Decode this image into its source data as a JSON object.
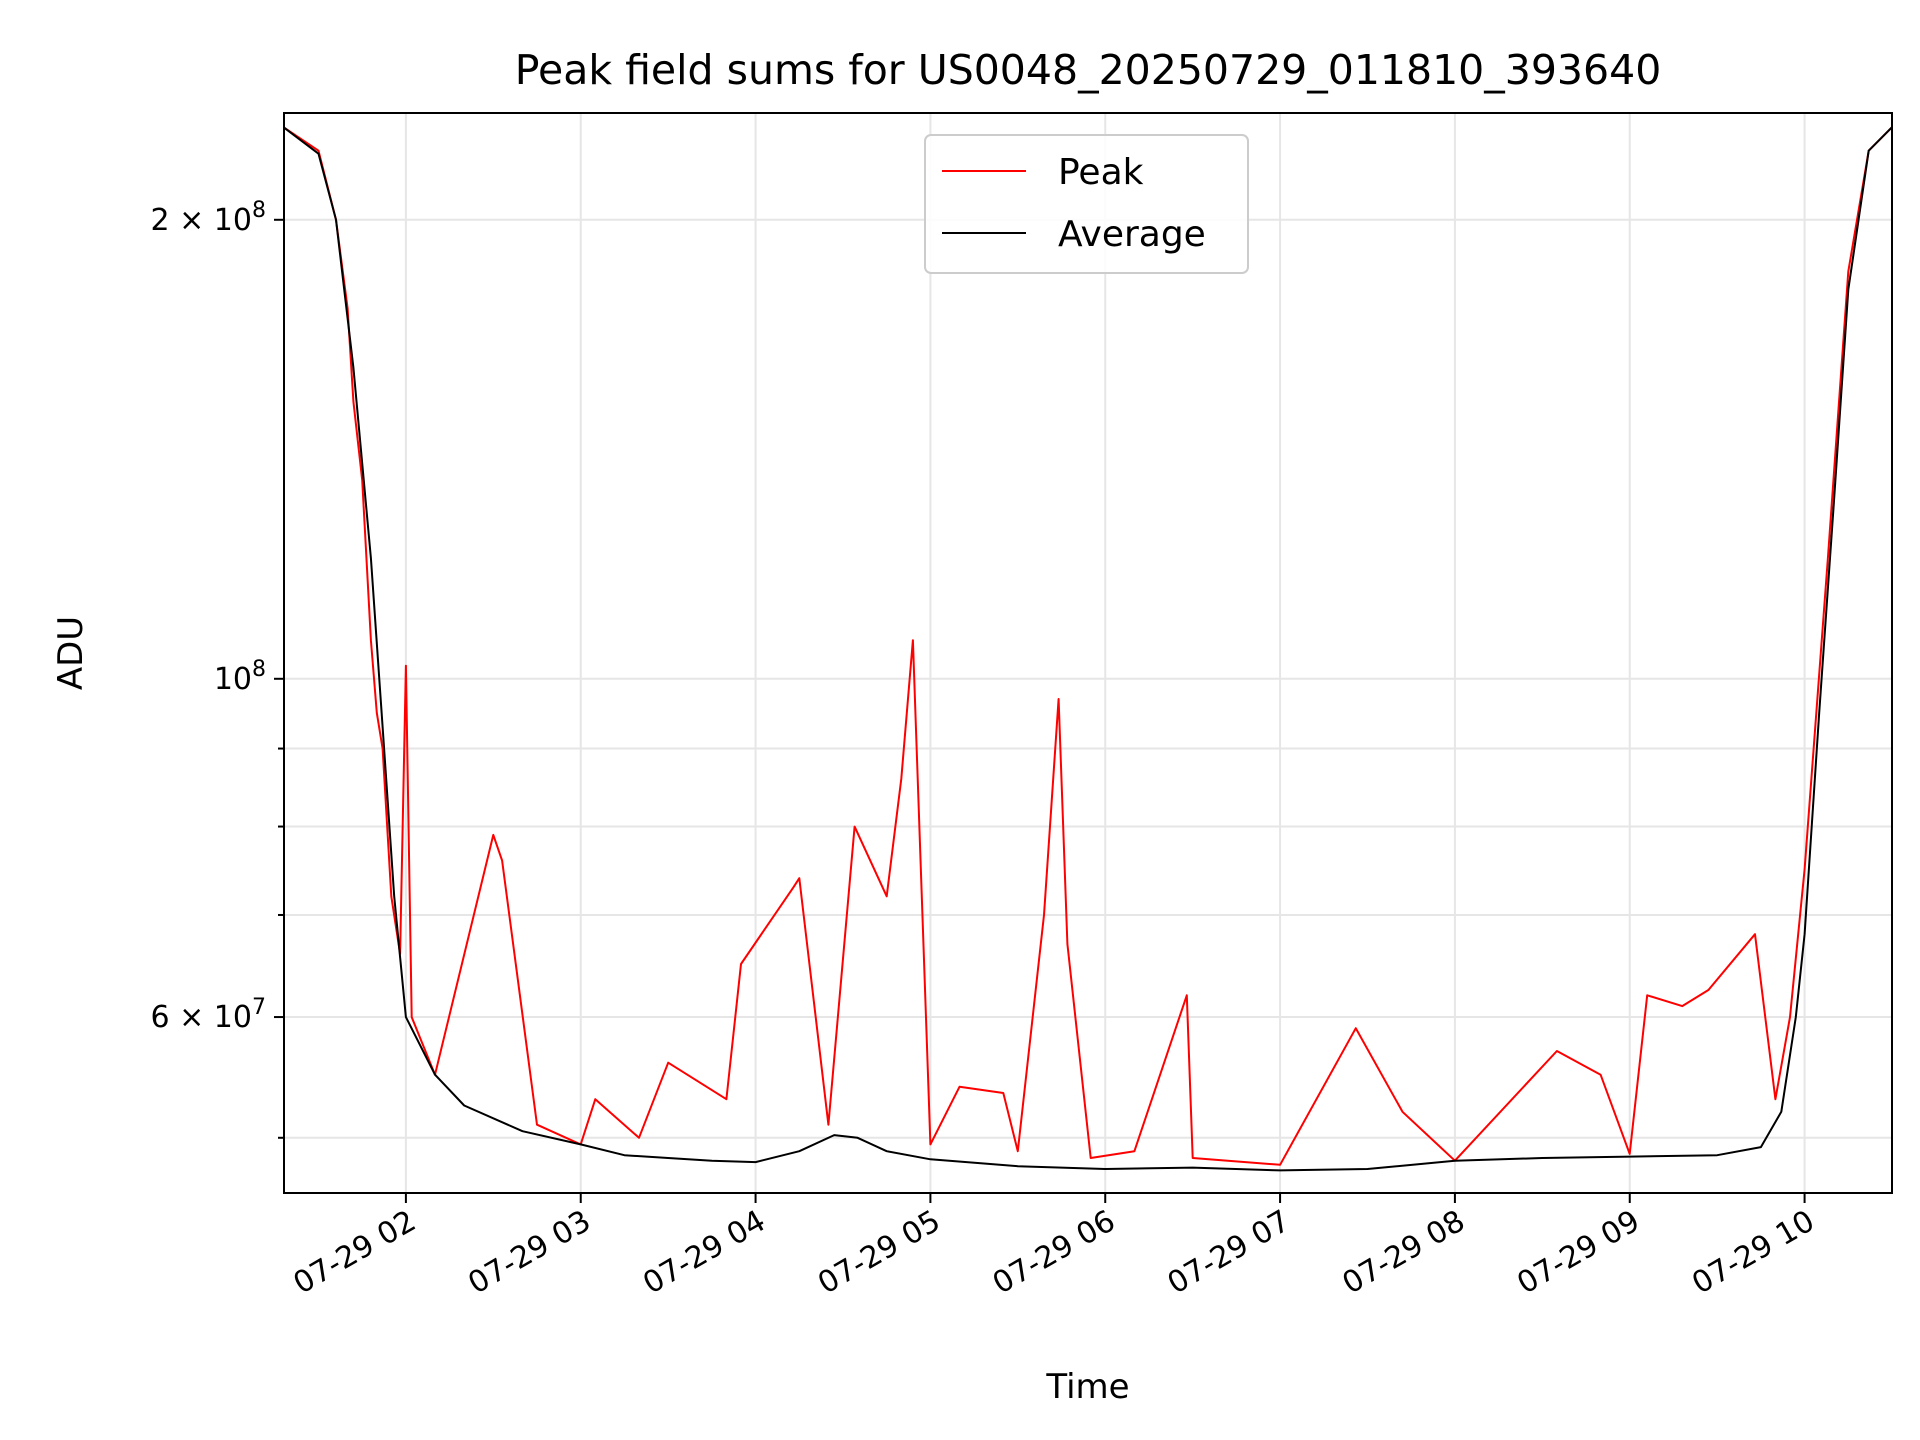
{
  "chart_data": {
    "type": "line",
    "title": "Peak field sums for US0048_20250729_011810_393640",
    "xlabel": "Time",
    "ylabel": "ADU",
    "y_scale": "log",
    "xlim": [
      "2025-07-29T01:18:10",
      "2025-07-29T10:30:00"
    ],
    "ylim": [
      46000000,
      235000000
    ],
    "x_ticks": [
      "07-29 02",
      "07-29 03",
      "07-29 04",
      "07-29 05",
      "07-29 06",
      "07-29 07",
      "07-29 08",
      "07-29 09",
      "07-29 10"
    ],
    "y_ticks": [
      {
        "value": 200000000,
        "mantissa": "2",
        "exp": "8"
      },
      {
        "value": 100000000,
        "mantissa": "",
        "exp": "8"
      },
      {
        "value": 60000000,
        "mantissa": "6",
        "exp": "7"
      }
    ],
    "grid": true,
    "legend_position": "top-center",
    "series": [
      {
        "name": "Peak",
        "color": "#ff0000",
        "points": [
          [
            "2025-07-29T01:18",
            230000000
          ],
          [
            "2025-07-29T01:30",
            222000000
          ],
          [
            "2025-07-29T01:36",
            200000000
          ],
          [
            "2025-07-29T01:40",
            175000000
          ],
          [
            "2025-07-29T01:42",
            152000000
          ],
          [
            "2025-07-29T01:45",
            135000000
          ],
          [
            "2025-07-29T01:48",
            106000000
          ],
          [
            "2025-07-29T01:50",
            95000000
          ],
          [
            "2025-07-29T01:52",
            90000000
          ],
          [
            "2025-07-29T01:55",
            72000000
          ],
          [
            "2025-07-29T01:58",
            66000000
          ],
          [
            "2025-07-29T02:00",
            102000000
          ],
          [
            "2025-07-29T02:02",
            60000000
          ],
          [
            "2025-07-29T02:10",
            55000000
          ],
          [
            "2025-07-29T02:30",
            79000000
          ],
          [
            "2025-07-29T02:33",
            76000000
          ],
          [
            "2025-07-29T02:45",
            51000000
          ],
          [
            "2025-07-29T03:00",
            49500000
          ],
          [
            "2025-07-29T03:05",
            53000000
          ],
          [
            "2025-07-29T03:20",
            50000000
          ],
          [
            "2025-07-29T03:30",
            56000000
          ],
          [
            "2025-07-29T03:50",
            53000000
          ],
          [
            "2025-07-29T03:55",
            65000000
          ],
          [
            "2025-07-29T04:13",
            73000000
          ],
          [
            "2025-07-29T04:15",
            74000000
          ],
          [
            "2025-07-29T04:25",
            51000000
          ],
          [
            "2025-07-29T04:34",
            80000000
          ],
          [
            "2025-07-29T04:45",
            72000000
          ],
          [
            "2025-07-29T04:50",
            86000000
          ],
          [
            "2025-07-29T04:54",
            106000000
          ],
          [
            "2025-07-29T05:00",
            49500000
          ],
          [
            "2025-07-29T05:10",
            54000000
          ],
          [
            "2025-07-29T05:25",
            53500000
          ],
          [
            "2025-07-29T05:30",
            49000000
          ],
          [
            "2025-07-29T05:39",
            70000000
          ],
          [
            "2025-07-29T05:44",
            97000000
          ],
          [
            "2025-07-29T05:47",
            67000000
          ],
          [
            "2025-07-29T05:55",
            48500000
          ],
          [
            "2025-07-29T06:10",
            49000000
          ],
          [
            "2025-07-29T06:28",
            62000000
          ],
          [
            "2025-07-29T06:30",
            48500000
          ],
          [
            "2025-07-29T07:00",
            48000000
          ],
          [
            "2025-07-29T07:26",
            59000000
          ],
          [
            "2025-07-29T07:42",
            52000000
          ],
          [
            "2025-07-29T08:00",
            48300000
          ],
          [
            "2025-07-29T08:35",
            57000000
          ],
          [
            "2025-07-29T08:50",
            55000000
          ],
          [
            "2025-07-29T09:00",
            48800000
          ],
          [
            "2025-07-29T09:06",
            62000000
          ],
          [
            "2025-07-29T09:18",
            61000000
          ],
          [
            "2025-07-29T09:27",
            62500000
          ],
          [
            "2025-07-29T09:43",
            68000000
          ],
          [
            "2025-07-29T09:50",
            53000000
          ],
          [
            "2025-07-29T09:55",
            60000000
          ],
          [
            "2025-07-29T10:00",
            75000000
          ],
          [
            "2025-07-29T10:08",
            120000000
          ],
          [
            "2025-07-29T10:15",
            185000000
          ],
          [
            "2025-07-29T10:22",
            222000000
          ],
          [
            "2025-07-29T10:30",
            230000000
          ]
        ]
      },
      {
        "name": "Average",
        "color": "#000000",
        "points": [
          [
            "2025-07-29T01:18",
            230000000
          ],
          [
            "2025-07-29T01:30",
            221000000
          ],
          [
            "2025-07-29T01:36",
            200000000
          ],
          [
            "2025-07-29T01:42",
            160000000
          ],
          [
            "2025-07-29T01:48",
            120000000
          ],
          [
            "2025-07-29T01:52",
            93000000
          ],
          [
            "2025-07-29T01:56",
            72000000
          ],
          [
            "2025-07-29T02:00",
            60000000
          ],
          [
            "2025-07-29T02:10",
            55000000
          ],
          [
            "2025-07-29T02:20",
            52500000
          ],
          [
            "2025-07-29T02:40",
            50500000
          ],
          [
            "2025-07-29T03:00",
            49500000
          ],
          [
            "2025-07-29T03:15",
            48700000
          ],
          [
            "2025-07-29T03:30",
            48500000
          ],
          [
            "2025-07-29T03:45",
            48300000
          ],
          [
            "2025-07-29T04:00",
            48200000
          ],
          [
            "2025-07-29T04:15",
            49000000
          ],
          [
            "2025-07-29T04:27",
            50200000
          ],
          [
            "2025-07-29T04:35",
            50000000
          ],
          [
            "2025-07-29T04:45",
            49000000
          ],
          [
            "2025-07-29T05:00",
            48400000
          ],
          [
            "2025-07-29T05:30",
            47900000
          ],
          [
            "2025-07-29T06:00",
            47700000
          ],
          [
            "2025-07-29T06:30",
            47800000
          ],
          [
            "2025-07-29T07:00",
            47600000
          ],
          [
            "2025-07-29T07:30",
            47700000
          ],
          [
            "2025-07-29T08:00",
            48300000
          ],
          [
            "2025-07-29T08:30",
            48500000
          ],
          [
            "2025-07-29T09:00",
            48600000
          ],
          [
            "2025-07-29T09:30",
            48700000
          ],
          [
            "2025-07-29T09:45",
            49300000
          ],
          [
            "2025-07-29T09:52",
            52000000
          ],
          [
            "2025-07-29T09:57",
            60000000
          ],
          [
            "2025-07-29T10:00",
            68000000
          ],
          [
            "2025-07-29T10:05",
            95000000
          ],
          [
            "2025-07-29T10:10",
            130000000
          ],
          [
            "2025-07-29T10:15",
            180000000
          ],
          [
            "2025-07-29T10:22",
            222000000
          ],
          [
            "2025-07-29T10:30",
            230000000
          ]
        ]
      }
    ]
  }
}
